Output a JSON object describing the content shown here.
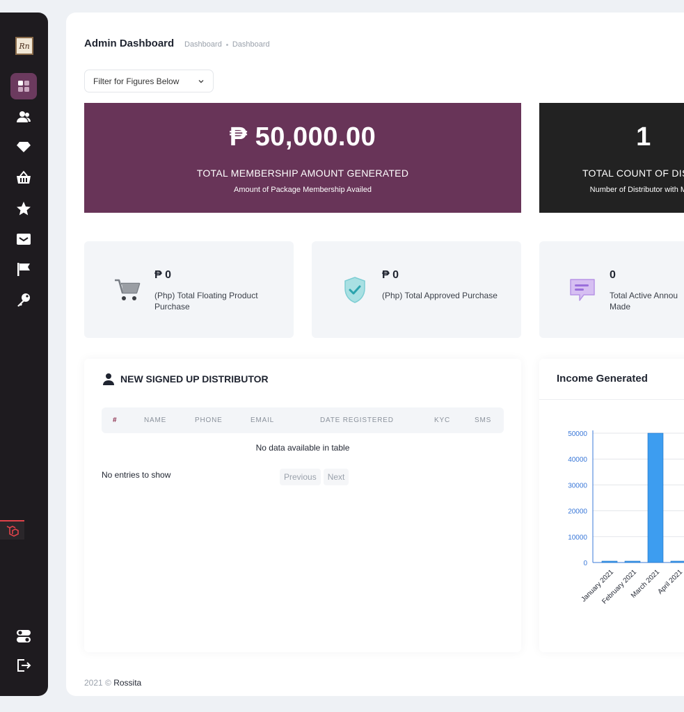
{
  "sidebar": {
    "logo_text": "Rn",
    "items": [
      {
        "icon": "dashboard-icon"
      },
      {
        "icon": "users-icon"
      },
      {
        "icon": "diamond-icon"
      },
      {
        "icon": "basket-icon"
      },
      {
        "icon": "star-icon"
      },
      {
        "icon": "mail-icon"
      },
      {
        "icon": "flag-icon"
      },
      {
        "icon": "key-icon"
      }
    ],
    "bottom": [
      {
        "icon": "toggle-icon"
      },
      {
        "icon": "logout-icon"
      }
    ]
  },
  "header": {
    "title": "Admin Dashboard",
    "breadcrumb": [
      "Dashboard",
      "Dashboard"
    ]
  },
  "filter": {
    "label": "Filter for Figures Below"
  },
  "big_cards": {
    "membership": {
      "amount": "₱ 50,000.00",
      "label": "TOTAL MEMBERSHIP AMOUNT GENERATED",
      "sub": "Amount of Package Membership Availed",
      "color": "#683458"
    },
    "distributors": {
      "amount": "1",
      "label": "TOTAL COUNT OF DISTRI",
      "sub": "Number of Distributor with Mem",
      "color": "#222222"
    }
  },
  "stats": [
    {
      "value": "₱ 0",
      "desc": "(Php) Total Floating Product Purchase",
      "icon": "cart-icon"
    },
    {
      "value": "₱ 0",
      "desc": "(Php) Total Approved Purchase",
      "icon": "shield-check-icon"
    },
    {
      "value": "0",
      "desc": "Total Active Annou Made",
      "icon": "chat-icon"
    }
  ],
  "table": {
    "title": "NEW SIGNED UP DISTRIBUTOR",
    "columns": [
      "#",
      "NAME",
      "PHONE",
      "EMAIL",
      "DATE REGISTERED",
      "KYC",
      "SMS"
    ],
    "empty_text": "No data available in table",
    "entries_text": "No entries to show",
    "prev_label": "Previous",
    "next_label": "Next"
  },
  "chart": {
    "title": "Income Generated"
  },
  "chart_data": {
    "type": "bar",
    "categories": [
      "January 2021",
      "February 2021",
      "March 2021",
      "April 2021"
    ],
    "values": [
      0,
      0,
      50000,
      0
    ],
    "yticks": [
      0,
      10000,
      20000,
      30000,
      40000,
      50000
    ],
    "ylim": [
      0,
      50000
    ],
    "bar_color": "#3d9df0",
    "tick_color": "#3a78d8",
    "grid": true
  },
  "footer": {
    "year": "2021 ©",
    "brand": "Rossita"
  }
}
